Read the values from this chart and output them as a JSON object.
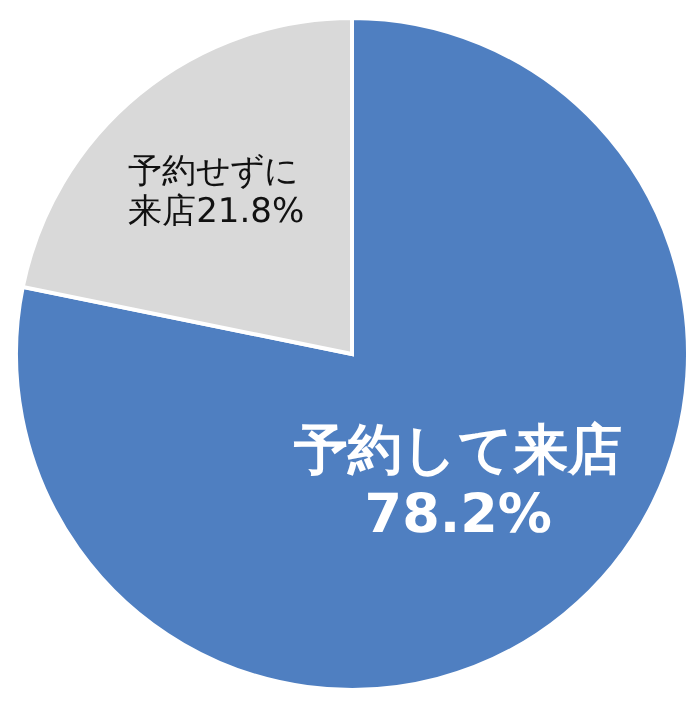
{
  "chart_data": {
    "type": "pie",
    "categories": [
      "予約して来店",
      "予約せずに来店"
    ],
    "values": [
      78.2,
      21.8
    ],
    "value_labels": [
      "78.2%",
      "21.8%"
    ],
    "colors": [
      "#4f7fc1",
      "#d9d9d9"
    ]
  }
}
